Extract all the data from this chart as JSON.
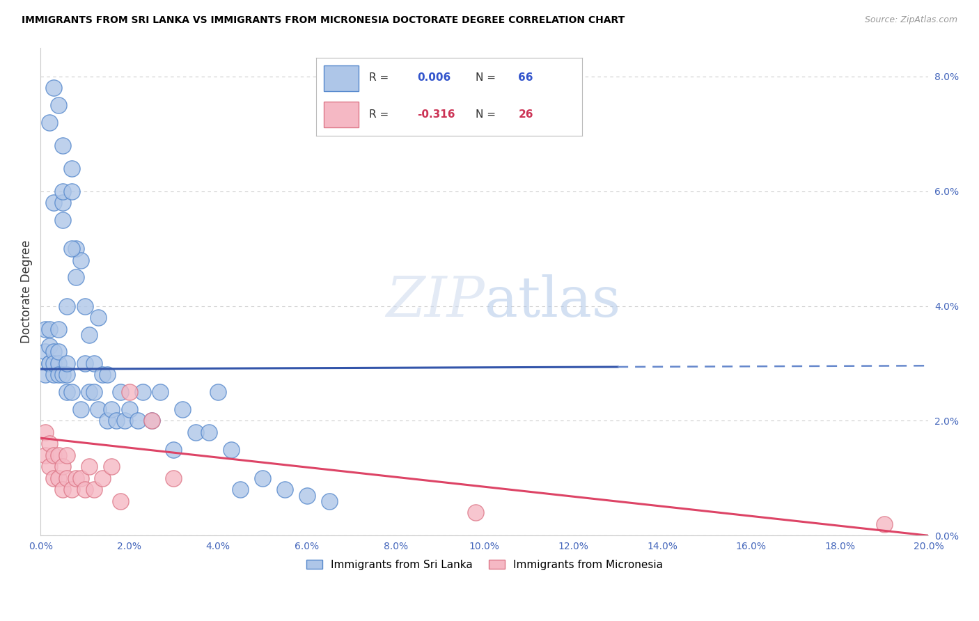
{
  "title": "IMMIGRANTS FROM SRI LANKA VS IMMIGRANTS FROM MICRONESIA DOCTORATE DEGREE CORRELATION CHART",
  "source": "Source: ZipAtlas.com",
  "ylabel": "Doctorate Degree",
  "sri_lanka_color": "#aec6e8",
  "sri_lanka_edge": "#5588cc",
  "micronesia_color": "#f5b8c4",
  "micronesia_edge": "#dd7788",
  "trend_sri_lanka_solid_color": "#3355aa",
  "trend_sri_lanka_dash_color": "#6688cc",
  "trend_micronesia_color": "#dd4466",
  "watermark": "ZIPatlas",
  "legend_r1_label": "R = ",
  "legend_r1_val": "0.006",
  "legend_n1_label": "N = ",
  "legend_n1_val": "66",
  "legend_r2_label": "R = ",
  "legend_r2_val": "-0.316",
  "legend_n2_label": "N = ",
  "legend_n2_val": "26",
  "sri_lanka_color_legend": "#aec6e8",
  "micronesia_color_legend": "#f5b8c4",
  "xlim": [
    0.0,
    0.2
  ],
  "ylim": [
    0.0,
    0.085
  ],
  "ytick_vals": [
    0.0,
    0.02,
    0.04,
    0.06,
    0.08
  ],
  "xtick_vals": [
    0.0,
    0.02,
    0.04,
    0.06,
    0.08,
    0.1,
    0.12,
    0.14,
    0.16,
    0.18,
    0.2
  ],
  "sri_lanka_x": [
    0.001,
    0.001,
    0.001,
    0.002,
    0.002,
    0.002,
    0.002,
    0.003,
    0.003,
    0.003,
    0.003,
    0.004,
    0.004,
    0.004,
    0.004,
    0.005,
    0.005,
    0.005,
    0.005,
    0.006,
    0.006,
    0.006,
    0.007,
    0.007,
    0.007,
    0.008,
    0.008,
    0.009,
    0.009,
    0.01,
    0.01,
    0.011,
    0.011,
    0.012,
    0.012,
    0.013,
    0.013,
    0.014,
    0.015,
    0.015,
    0.016,
    0.017,
    0.018,
    0.019,
    0.02,
    0.022,
    0.023,
    0.025,
    0.027,
    0.03,
    0.032,
    0.035,
    0.038,
    0.04,
    0.043,
    0.045,
    0.05,
    0.055,
    0.06,
    0.065,
    0.002,
    0.003,
    0.004,
    0.005,
    0.006,
    0.007
  ],
  "sri_lanka_y": [
    0.028,
    0.032,
    0.036,
    0.03,
    0.033,
    0.036,
    0.03,
    0.032,
    0.028,
    0.03,
    0.058,
    0.03,
    0.028,
    0.032,
    0.036,
    0.055,
    0.058,
    0.06,
    0.028,
    0.028,
    0.03,
    0.025,
    0.064,
    0.06,
    0.025,
    0.05,
    0.045,
    0.048,
    0.022,
    0.04,
    0.03,
    0.035,
    0.025,
    0.03,
    0.025,
    0.038,
    0.022,
    0.028,
    0.028,
    0.02,
    0.022,
    0.02,
    0.025,
    0.02,
    0.022,
    0.02,
    0.025,
    0.02,
    0.025,
    0.015,
    0.022,
    0.018,
    0.018,
    0.025,
    0.015,
    0.008,
    0.01,
    0.008,
    0.007,
    0.006,
    0.072,
    0.078,
    0.075,
    0.068,
    0.04,
    0.05
  ],
  "micronesia_x": [
    0.001,
    0.001,
    0.002,
    0.002,
    0.003,
    0.003,
    0.004,
    0.004,
    0.005,
    0.005,
    0.006,
    0.006,
    0.007,
    0.008,
    0.009,
    0.01,
    0.011,
    0.012,
    0.014,
    0.016,
    0.018,
    0.02,
    0.025,
    0.03,
    0.098,
    0.19
  ],
  "micronesia_y": [
    0.014,
    0.018,
    0.012,
    0.016,
    0.01,
    0.014,
    0.01,
    0.014,
    0.008,
    0.012,
    0.014,
    0.01,
    0.008,
    0.01,
    0.01,
    0.008,
    0.012,
    0.008,
    0.01,
    0.012,
    0.006,
    0.025,
    0.02,
    0.01,
    0.004,
    0.002
  ],
  "sri_trend_solid_end": 0.13,
  "sri_trend_b": 0.029,
  "sri_trend_m": 0.003,
  "mic_trend_b": 0.017,
  "mic_trend_m": -0.085
}
